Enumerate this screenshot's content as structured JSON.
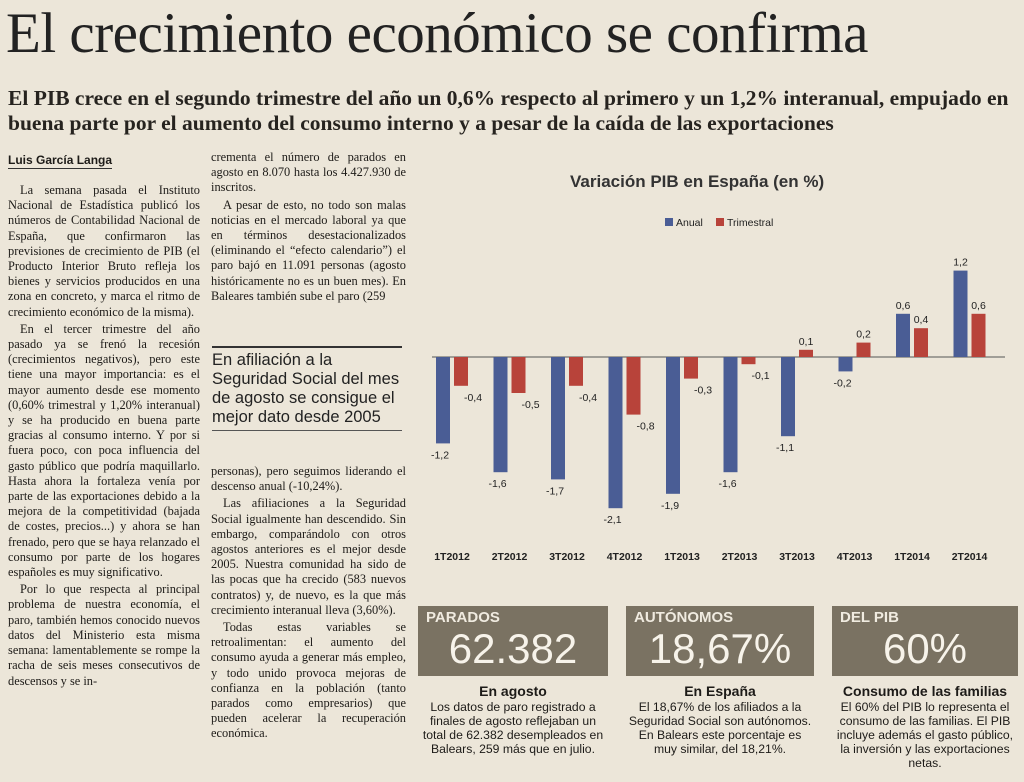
{
  "headline": "El crecimiento económico se confirma",
  "deck": "El PIB crece en el segundo trimestre del año un 0,6% respecto al primero y un 1,2% interanual, empujado en buena parte por el aumento del consumo interno y a pesar de la caída de las exportaciones",
  "byline": "Luis García Langa",
  "col1": [
    "La semana pasada el Instituto Nacional de Estadística publicó los números de Contabilidad Nacional de España, que confirmaron las previsiones de crecimiento de PIB (el Producto Interior Bruto refleja los bienes y servicios producidos en una zona en concreto, y marca el ritmo de crecimiento económico de la misma).",
    "En el tercer trimestre del año pasado ya se frenó la recesión (crecimientos negativos), pero este tiene una mayor importancia: es el mayor aumento desde ese momento (0,60% trimestral y 1,20% interanual) y se ha producido en buena parte gracias al consumo interno. Y por si fuera poco, con poca influencia del gasto público que podría maquillarlo. Hasta ahora la fortaleza venía por parte de las exportaciones debido a la mejora de la competitividad (bajada de costes, precios...) y ahora se han frenado, pero que se haya relanzado el consumo por parte de los hogares españoles es muy significativo.",
    "Por lo que respecta al principal problema de nuestra economía, el paro, también hemos conocido nuevos datos del Ministerio esta misma semana: lamentablemente se rompe la racha de seis meses consecutivos de descensos y se in-"
  ],
  "col2a": [
    "crementa el número de parados en agosto en 8.070 hasta los 4.427.930 de inscritos.",
    "A pesar de esto, no todo son malas noticias en el mercado laboral ya que en términos desestacionalizados (eliminando el “efecto calendario”) el paro bajó en 11.091 personas (agosto históricamente no es un buen mes). En Baleares también sube el paro (259"
  ],
  "highlight": "En afiliación a la Seguridad Social del mes de agosto se consigue el mejor dato desde 2005",
  "col2b": [
    "personas), pero seguimos liderando el descenso anual (-10,24%).",
    "Las afiliaciones a la Seguridad Social igualmente han descendido. Sin embargo, comparándolo con otros agostos anteriores es el mejor desde 2005. Nuestra comunidad ha sido de las pocas que ha crecido (583 nuevos contratos) y, de nuevo, es la que más crecimiento interanual lleva (3,60%).",
    "Todas estas variables se retroalimentan: el aumento del consumo ayuda a generar más empleo, y todo unido provoca mejoras de confianza en la población (tanto parados como empresarios) que pueden acelerar la recuperación económica."
  ],
  "chart_data": {
    "type": "bar",
    "title": "Variación PIB en España (en %)",
    "categories": [
      "1T2012",
      "2T2012",
      "3T2012",
      "4T2012",
      "1T2013",
      "2T2013",
      "3T2013",
      "4T2013",
      "1T2014",
      "2T2014"
    ],
    "series": [
      {
        "name": "Anual",
        "color": "#4a5d95",
        "values": [
          -1.2,
          -1.6,
          -1.7,
          -2.1,
          -1.9,
          -1.6,
          -1.1,
          -0.2,
          0.6,
          1.2
        ]
      },
      {
        "name": "Trimestral",
        "color": "#b8433a",
        "values": [
          -0.4,
          -0.5,
          -0.4,
          -0.8,
          -0.3,
          -0.1,
          0.1,
          0.2,
          0.4,
          0.6
        ]
      }
    ],
    "labels_anual": [
      "-1,2",
      "-1,6",
      "-1,7",
      "-2,1",
      "-1,9",
      "-1,6",
      "-1,1",
      "-0,2",
      "0,6",
      "1,2"
    ],
    "labels_trimestral": [
      "-0,4",
      "-0,5",
      "-0,4",
      "-0,8",
      "-0,3",
      "-0,1",
      "0,1",
      "0,2",
      "0,4",
      "0,6"
    ],
    "legend": "top",
    "grid": false
  },
  "stats": [
    {
      "label": "PARADOS",
      "value": "62.382",
      "heading": "En agosto",
      "desc": "Los datos de paro registrado a finales de agosto reflejaban un total de 62.382 desempleados en Balears, 259 más que en julio."
    },
    {
      "label": "AUTÓNOMOS",
      "value": "18,67%",
      "heading": "En España",
      "desc": "El 18,67% de los afiliados a la Seguridad Social son autónomos. En Balears este porcentaje es muy similar, del 18,21%."
    },
    {
      "label": "DEL PIB",
      "value": "60%",
      "heading": "Consumo de las familias",
      "desc": "El 60% del PIB lo representa el consumo de las familias. El PIB incluye además el gasto público, la inversión y las exportaciones netas."
    }
  ]
}
